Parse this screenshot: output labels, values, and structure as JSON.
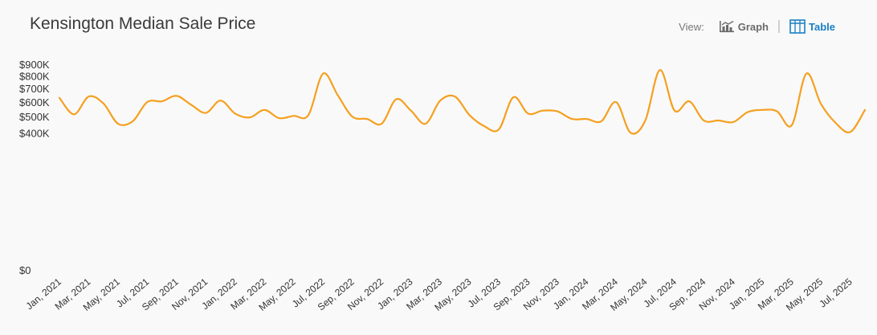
{
  "header": {
    "title": "Kensington Median Sale Price",
    "view_label": "View:",
    "graph_label": "Graph",
    "table_label": "Table",
    "active_view": "Table",
    "graph_icon": "bar-chart-icon",
    "table_icon": "table-icon"
  },
  "chart_data": {
    "type": "line",
    "title": "Kensington Median Sale Price",
    "xlabel": "",
    "ylabel": "",
    "y_scale": "sqrt",
    "ylim": [
      0,
      900000
    ],
    "yticks": [
      {
        "value": 0,
        "label": "$0"
      },
      {
        "value": 400000,
        "label": "$400K"
      },
      {
        "value": 500000,
        "label": "$500K"
      },
      {
        "value": 600000,
        "label": "$600K"
      },
      {
        "value": 700000,
        "label": "$700K"
      },
      {
        "value": 800000,
        "label": "$800K"
      },
      {
        "value": 900000,
        "label": "$900K"
      }
    ],
    "x_tick_labels": [
      "Jan, 2021",
      "Mar, 2021",
      "May, 2021",
      "Jul, 2021",
      "Sep, 2021",
      "Nov, 2021",
      "Jan, 2022",
      "Mar, 2022",
      "May, 2022",
      "Jul, 2022",
      "Sep, 2022",
      "Nov, 2022",
      "Jan, 2023",
      "Mar, 2023",
      "May, 2023",
      "Jul, 2023",
      "Sep, 2023",
      "Nov, 2023",
      "Jan, 2024",
      "Mar, 2024",
      "May, 2024",
      "Jul, 2024",
      "Sep, 2024",
      "Nov, 2024",
      "Jan, 2025",
      "Mar, 2025",
      "May, 2025",
      "Jul, 2025"
    ],
    "line_color": "#f5a020",
    "grid": false,
    "series": [
      {
        "x": [
          "Jan, 2021",
          "Feb, 2021",
          "Mar, 2021",
          "Apr, 2021",
          "May, 2021",
          "Jun, 2021",
          "Jul, 2021",
          "Aug, 2021",
          "Sep, 2021",
          "Oct, 2021",
          "Nov, 2021",
          "Dec, 2021",
          "Jan, 2022",
          "Feb, 2022",
          "Mar, 2022",
          "Apr, 2022",
          "May, 2022",
          "Jun, 2022",
          "Jul, 2022",
          "Aug, 2022",
          "Sep, 2022",
          "Oct, 2022",
          "Nov, 2022",
          "Dec, 2022",
          "Jan, 2023",
          "Feb, 2023",
          "Mar, 2023",
          "Apr, 2023",
          "May, 2023",
          "Jun, 2023",
          "Jul, 2023",
          "Aug, 2023",
          "Sep, 2023",
          "Oct, 2023",
          "Nov, 2023",
          "Dec, 2023",
          "Jan, 2024",
          "Feb, 2024",
          "Mar, 2024",
          "Apr, 2024",
          "May, 2024",
          "Jun, 2024",
          "Jul, 2024",
          "Aug, 2024",
          "Sep, 2024",
          "Oct, 2024",
          "Nov, 2024",
          "Dec, 2024",
          "Jan, 2025",
          "Feb, 2025",
          "Mar, 2025",
          "Apr, 2025",
          "May, 2025",
          "Jun, 2025",
          "Jul, 2025",
          "Aug, 2025"
        ],
        "values": [
          630000,
          515000,
          640000,
          590000,
          455000,
          470000,
          600000,
          605000,
          645000,
          580000,
          525000,
          610000,
          520000,
          495000,
          545000,
          490000,
          505000,
          510000,
          820000,
          650000,
          500000,
          485000,
          455000,
          620000,
          540000,
          455000,
          610000,
          640000,
          510000,
          440000,
          420000,
          635000,
          520000,
          540000,
          535000,
          485000,
          485000,
          470000,
          600000,
          400000,
          475000,
          850000,
          540000,
          605000,
          475000,
          475000,
          465000,
          530000,
          545000,
          535000,
          445000,
          820000,
          585000,
          460000,
          405000,
          545000
        ]
      }
    ]
  }
}
